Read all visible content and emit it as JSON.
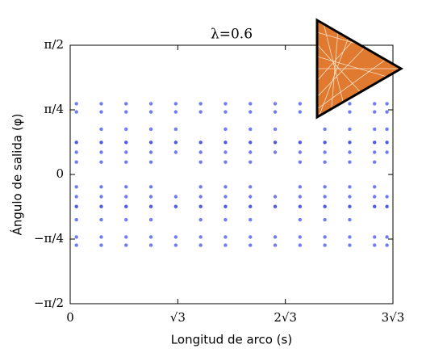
{
  "chart_data": {
    "type": "scatter",
    "title": "λ=0.6",
    "x_label": "Longitud de arco (s)",
    "y_label": "Ángulo de salida (φ)",
    "xlim": [
      0,
      5.196
    ],
    "ylim": [
      -1.5708,
      1.5708
    ],
    "xticks": [
      0,
      {
        "value": 1.732,
        "label": "√3"
      },
      {
        "value": 3.464,
        "label": "2√3"
      },
      {
        "value": 5.196,
        "label": "3√3"
      }
    ],
    "yticks": [
      {
        "value": -1.5708,
        "label": "−π/2"
      },
      {
        "value": -0.7854,
        "label": "−π/4"
      },
      0,
      {
        "value": 0.7854,
        "label": "π/4"
      },
      {
        "value": 1.5708,
        "label": "π/2"
      }
    ],
    "x": [
      0.1,
      0.5,
      0.9,
      1.3,
      1.7,
      2.1,
      2.5,
      2.9,
      3.3,
      3.7,
      4.1,
      4.5,
      4.9,
      5.1
    ],
    "series": [
      {
        "color": "#3344ee",
        "values": [
          0.86,
          0.86,
          0.86,
          0.86,
          0.86,
          0.86,
          0.86,
          0.86,
          0.86,
          0.86,
          0.86,
          0.86,
          0.86,
          0.86
        ]
      },
      {
        "color": "#3344ee",
        "values": [
          0.76,
          0.76,
          0.76,
          0.76,
          0.76,
          0.76,
          0.76,
          0.76,
          0.76,
          0.76,
          0.76,
          0.76,
          0.76,
          0.76
        ]
      },
      {
        "color": "#0011dd",
        "values": [
          0.39,
          0.39,
          0.39,
          0.39,
          0.39,
          0.39,
          0.39,
          0.39,
          0.39,
          0.39,
          0.39,
          0.39,
          0.39,
          0.39
        ]
      },
      {
        "color": "#3344ee",
        "values": [
          0.27,
          0.27,
          0.27,
          0.27,
          0.27,
          0.27,
          0.27,
          0.27,
          0.27,
          0.27,
          0.27,
          0.27,
          0.27,
          0.27
        ]
      },
      {
        "color": "#3344ee",
        "values": [
          0.15,
          0.15,
          0.15,
          0.15,
          null,
          0.15,
          0.15,
          0.15,
          null,
          0.15,
          0.15,
          0.15,
          0.15,
          null
        ]
      },
      {
        "color": "#3344ee",
        "values": [
          null,
          0.55,
          0.55,
          0.55,
          0.55,
          null,
          0.55,
          0.55,
          0.55,
          null,
          0.55,
          0.55,
          0.55,
          0.55
        ]
      },
      {
        "color": "#3344ee",
        "values": [
          -0.15,
          -0.15,
          -0.15,
          -0.15,
          null,
          -0.15,
          -0.15,
          -0.15,
          null,
          -0.15,
          -0.15,
          -0.15,
          -0.15,
          null
        ]
      },
      {
        "color": "#3344ee",
        "values": [
          -0.27,
          -0.27,
          -0.27,
          -0.27,
          -0.27,
          -0.27,
          -0.27,
          -0.27,
          -0.27,
          -0.27,
          -0.27,
          -0.27,
          -0.27,
          -0.27
        ]
      },
      {
        "color": "#0011dd",
        "values": [
          -0.39,
          -0.39,
          -0.39,
          -0.39,
          -0.39,
          -0.39,
          -0.39,
          -0.39,
          -0.39,
          -0.39,
          -0.39,
          -0.39,
          -0.39,
          -0.39
        ]
      },
      {
        "color": "#3344ee",
        "values": [
          -0.55,
          -0.55,
          -0.55,
          -0.55,
          null,
          -0.55,
          -0.55,
          -0.55,
          null,
          -0.55,
          -0.55,
          -0.55,
          null,
          null
        ]
      },
      {
        "color": "#3344ee",
        "values": [
          -0.76,
          -0.76,
          -0.76,
          -0.76,
          -0.76,
          -0.76,
          -0.76,
          -0.76,
          -0.76,
          -0.76,
          -0.76,
          -0.76,
          -0.76,
          -0.76
        ]
      },
      {
        "color": "#3344ee",
        "values": [
          -0.86,
          -0.86,
          -0.86,
          -0.86,
          -0.86,
          -0.86,
          -0.86,
          -0.86,
          -0.86,
          -0.86,
          -0.86,
          -0.86,
          -0.86,
          -0.86
        ]
      }
    ]
  }
}
